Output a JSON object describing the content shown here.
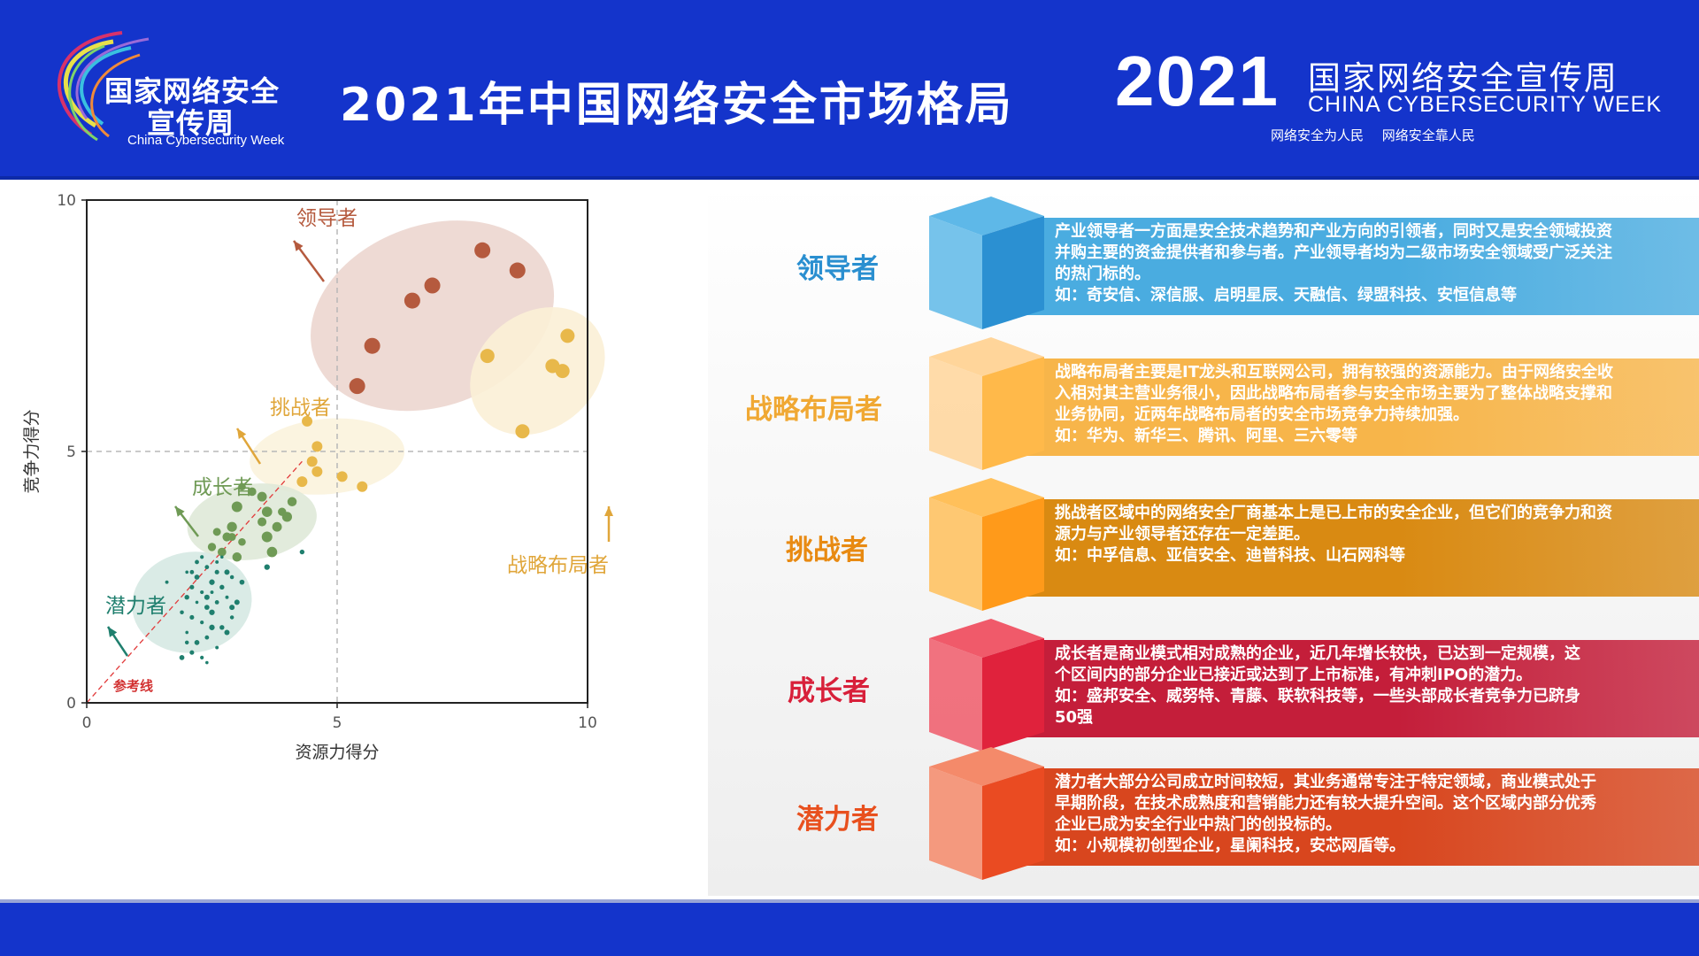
{
  "header": {
    "title": "2021年中国网络安全市场格局",
    "logo_left": {
      "line1": "国家网络安全",
      "line2": "宣传周",
      "en": "China Cybersecurity Week"
    },
    "logo_right": {
      "year": "2021",
      "cn": "国家网络安全宣传周",
      "en": "CHINA CYBERSECURITY WEEK",
      "slogan": "网络安全为人民 网络安全靠人民"
    },
    "colors": {
      "bar": "#1434cb"
    }
  },
  "chart_data": {
    "type": "scatter",
    "xlabel": "资源力得分",
    "ylabel": "竞争力得分",
    "xlim": [
      0,
      10
    ],
    "ylim": [
      0,
      10
    ],
    "xticks": [
      "0",
      "5",
      "10"
    ],
    "yticks": [
      "0",
      "5",
      "10"
    ],
    "reference_line": {
      "label": "参考线",
      "from": [
        0,
        0
      ],
      "to": [
        4.3,
        4.8
      ]
    },
    "divider": {
      "x": 5,
      "y": 5
    },
    "groups": [
      {
        "name": "领导者",
        "color": "#b55a3e",
        "ellipse_color": "#ecd6cf",
        "points": [
          [
            5.4,
            6.3
          ],
          [
            5.7,
            7.1
          ],
          [
            6.5,
            8.0
          ],
          [
            6.9,
            8.3
          ],
          [
            7.9,
            9.0
          ],
          [
            8.6,
            8.6
          ]
        ]
      },
      {
        "name": "战略布局者",
        "color": "#e8b84a",
        "ellipse_color": "#fbf0d6",
        "points": [
          [
            8.0,
            6.9
          ],
          [
            9.3,
            6.7
          ],
          [
            9.5,
            6.6
          ],
          [
            9.6,
            7.3
          ],
          [
            8.7,
            5.4
          ]
        ]
      },
      {
        "name": "挑战者",
        "color": "#e8b84a",
        "ellipse_color": "#fbf3dd",
        "points": [
          [
            4.4,
            5.6
          ],
          [
            4.6,
            5.1
          ],
          [
            4.5,
            4.8
          ],
          [
            4.6,
            4.6
          ],
          [
            4.3,
            4.4
          ],
          [
            5.1,
            4.5
          ],
          [
            5.5,
            4.3
          ]
        ]
      },
      {
        "name": "成长者",
        "color": "#6f9a55",
        "ellipse_color": "#dfe9d8",
        "points": [
          [
            3.1,
            4.3
          ],
          [
            3.3,
            4.2
          ],
          [
            3.5,
            4.1
          ],
          [
            3.0,
            3.9
          ],
          [
            3.9,
            3.8
          ],
          [
            4.1,
            4.0
          ],
          [
            3.6,
            3.8
          ],
          [
            2.6,
            3.4
          ],
          [
            2.8,
            3.3
          ],
          [
            2.9,
            3.5
          ],
          [
            3.1,
            3.2
          ],
          [
            2.7,
            3.0
          ],
          [
            3.8,
            3.5
          ],
          [
            3.6,
            3.3
          ],
          [
            2.5,
            3.1
          ],
          [
            3.0,
            2.9
          ],
          [
            3.7,
            3.0
          ],
          [
            2.9,
            3.3
          ],
          [
            3.5,
            3.6
          ],
          [
            4.0,
            3.7
          ]
        ]
      },
      {
        "name": "潜力者",
        "color": "#1f7f6e",
        "ellipse_color": "#d6e9e3",
        "points": [
          [
            2.0,
            2.6
          ],
          [
            2.2,
            2.5
          ],
          [
            2.4,
            2.7
          ],
          [
            2.6,
            2.8
          ],
          [
            2.8,
            2.6
          ],
          [
            2.1,
            2.3
          ],
          [
            2.3,
            2.2
          ],
          [
            2.5,
            2.4
          ],
          [
            2.7,
            2.3
          ],
          [
            2.9,
            2.5
          ],
          [
            2.2,
            2.0
          ],
          [
            2.4,
            1.9
          ],
          [
            2.6,
            2.0
          ],
          [
            2.8,
            2.1
          ],
          [
            3.0,
            2.0
          ],
          [
            2.1,
            1.7
          ],
          [
            2.3,
            1.6
          ],
          [
            2.5,
            1.8
          ],
          [
            2.7,
            1.5
          ],
          [
            2.9,
            1.7
          ],
          [
            2.0,
            1.4
          ],
          [
            2.2,
            1.2
          ],
          [
            2.4,
            1.3
          ],
          [
            2.6,
            1.1
          ],
          [
            2.8,
            1.4
          ],
          [
            2.1,
            1.0
          ],
          [
            2.3,
            0.9
          ],
          [
            2.5,
            1.5
          ],
          [
            2.0,
            2.1
          ],
          [
            1.9,
            1.8
          ],
          [
            2.7,
            2.9
          ],
          [
            3.1,
            2.4
          ],
          [
            2.2,
            2.8
          ],
          [
            1.6,
            2.4
          ],
          [
            2.4,
            2.1
          ],
          [
            2.6,
            2.6
          ],
          [
            2.3,
            2.9
          ],
          [
            3.6,
            2.7
          ],
          [
            4.3,
            3.0
          ],
          [
            2.0,
            1.2
          ],
          [
            2.4,
            0.8
          ],
          [
            1.9,
            0.9
          ],
          [
            2.1,
            2.6
          ],
          [
            2.5,
            2.2
          ],
          [
            2.9,
            1.9
          ]
        ]
      }
    ],
    "annotations": [
      {
        "text": "领导者",
        "color": "#b55a3e"
      },
      {
        "text": "挑战者",
        "color": "#e0a63a"
      },
      {
        "text": "成长者",
        "color": "#6f9a55"
      },
      {
        "text": "潜力者",
        "color": "#1f7f6e"
      },
      {
        "text": "战略布局者",
        "color": "#e0a63a"
      }
    ]
  },
  "categories": [
    {
      "label": "领导者",
      "label_color": "#2a8fd0",
      "band_color": "#4aace0",
      "cube_front": "#2b90d2",
      "cube_top": "#5eb8e8",
      "lines": [
        "产业领导者一方面是安全技术趋势和产业方向的引领者，同时又是安全领域投资",
        "并购主要的资金提供者和参与者。产业领导者均为二级市场安全领域受广泛关注",
        "的热门标的。",
        "如：奇安信、深信服、启明星辰、天融信、绿盟科技、安恒信息等"
      ]
    },
    {
      "label": "战略布局者",
      "label_color": "#f0a833",
      "band_color": "#f7b54a",
      "cube_front": "#ffb94a",
      "cube_top": "#ffd59a",
      "lines": [
        "战略布局者主要是IT龙头和互联网公司，拥有较强的资源能力。由于网络安全收",
        "入相对其主营业务很小，因此战略布局者参与安全市场主要为了整体战略支撑和",
        "业务协同，近两年战略布局者的安全市场竞争力持续加强。",
        "如：华为、新华三、腾讯、阿里、三六零等"
      ]
    },
    {
      "label": "挑战者",
      "label_color": "#e88a12",
      "band_color": "#d98a12",
      "cube_front": "#ff9a1a",
      "cube_top": "#ffc05a",
      "lines": [
        "挑战者区域中的网络安全厂商基本上是已上市的安全企业，但它们的竞争力和资",
        "源力与产业领导者还存在一定差距。",
        "如：中孚信息、亚信安全、迪普科技、山石网科等"
      ]
    },
    {
      "label": "成长者",
      "label_color": "#d8203a",
      "band_color": "#c41e3a",
      "cube_front": "#e0223c",
      "cube_top": "#f05a6a",
      "lines": [
        "成长者是商业模式相对成熟的企业，近几年增长较快，已达到一定规模，这",
        "个区间内的部分企业已接近或达到了上市标准，有冲刺IPO的潜力。",
        "如：盛邦安全、威努特、青藤、联软科技等，一些头部成长者竞争力已跻身",
        "50强"
      ]
    },
    {
      "label": "潜力者",
      "label_color": "#e8501e",
      "band_color": "#d8461e",
      "cube_front": "#ea4b22",
      "cube_top": "#f48a6a",
      "lines": [
        "潜力者大部分公司成立时间较短，其业务通常专注于特定领域，商业模式处于",
        "早期阶段，在技术成熟度和营销能力还有较大提升空间。这个区域内部分优秀",
        "企业已成为安全行业中热门的创投标的。",
        "如：小规模初创型企业，星阑科技，安芯网盾等。"
      ]
    }
  ]
}
